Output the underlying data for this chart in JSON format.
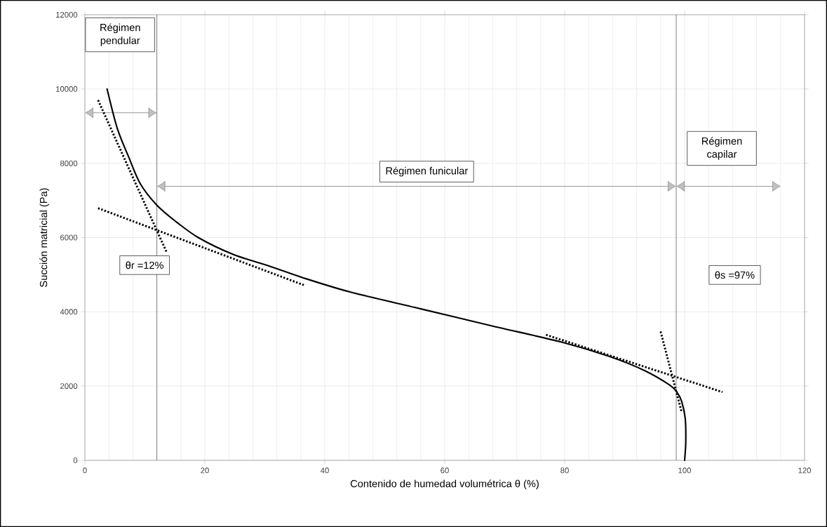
{
  "chart_data": {
    "type": "line",
    "xlabel": "Contenido de humedad volumétrica θ (%)",
    "ylabel": "Succión matricial (Pa)",
    "xlim": [
      0,
      120
    ],
    "ylim": [
      0,
      12000
    ],
    "xticks": [
      0,
      20,
      40,
      60,
      80,
      100,
      120
    ],
    "yticks": [
      0,
      2000,
      4000,
      6000,
      8000,
      10000,
      12000
    ],
    "grid": true,
    "series": [
      {
        "color": "#000000",
        "line_style": "solid",
        "x": [
          3.7,
          5.4,
          7.3,
          9.2,
          11.9,
          15.1,
          18.9,
          24.8,
          30.6,
          36.5,
          44.3,
          56,
          67.9,
          79.6,
          87.4,
          93.3,
          97.5,
          98.7,
          99.5,
          100.1,
          100.2,
          100
        ],
        "values": [
          10000,
          8940,
          8170,
          7460,
          6890,
          6440,
          6000,
          5540,
          5240,
          4910,
          4530,
          4080,
          3620,
          3180,
          2800,
          2420,
          2030,
          1840,
          1590,
          1130,
          500,
          0
        ]
      },
      {
        "color": "#000000",
        "line_style": "dotted",
        "x": [
          2.2,
          13.7
        ],
        "values": [
          9700,
          5580
        ]
      },
      {
        "color": "#000000",
        "line_style": "dotted",
        "x": [
          2.2,
          36.5
        ],
        "values": [
          6790,
          4720
        ]
      },
      {
        "color": "#000000",
        "line_style": "dotted",
        "x": [
          76.9,
          106.3
        ],
        "values": [
          3380,
          1840
        ]
      },
      {
        "color": "#000000",
        "line_style": "dotted",
        "x": [
          96,
          99.5
        ],
        "values": [
          3470,
          1300
        ]
      }
    ],
    "ref_lines": [
      {
        "axis": "x",
        "value": 12,
        "color": "#606060"
      },
      {
        "axis": "x",
        "value": 98.6,
        "color": "#606060"
      }
    ],
    "annotations": [
      "Régimen pendular",
      "Régimen funicular",
      "Régimen capilar",
      "θr =12%",
      "θs =97%"
    ]
  }
}
